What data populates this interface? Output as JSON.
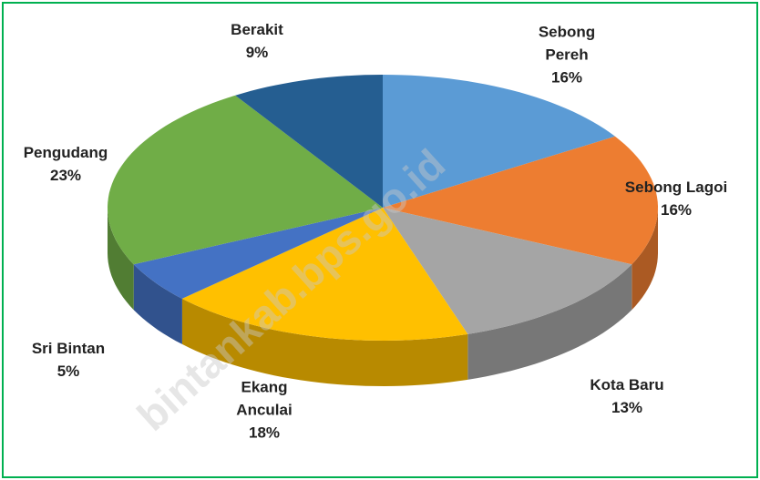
{
  "chart_data": {
    "type": "pie3d",
    "categories": [
      "Sebong Pereh",
      "Sebong Lagoi",
      "Kota Baru",
      "Ekang Anculai",
      "Sri Bintan",
      "Pengudang",
      "Berakit"
    ],
    "values": [
      16,
      16,
      13,
      18,
      5,
      23,
      9
    ],
    "value_labels": [
      "16%",
      "16%",
      "13%",
      "18%",
      "5%",
      "23%",
      "9%"
    ],
    "colors": [
      "#5b9bd5",
      "#ed7d31",
      "#a5a5a5",
      "#ffc000",
      "#4472c4",
      "#70ad47",
      "#255e91"
    ],
    "watermark": "bintankab.bps.go.id"
  }
}
